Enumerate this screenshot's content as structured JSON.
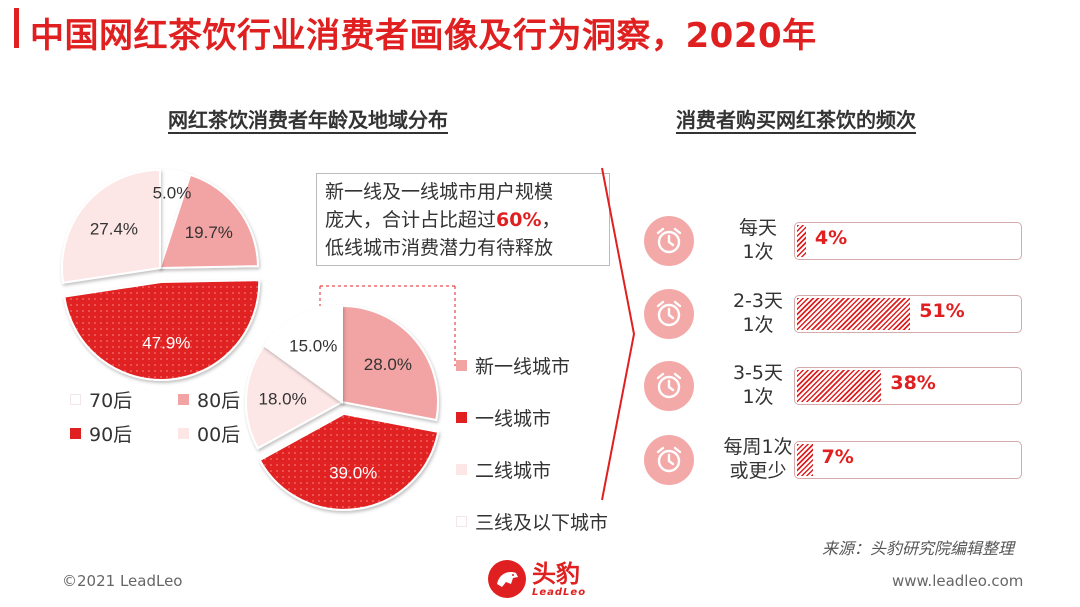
{
  "page": {
    "title": "中国网红茶饮行业消费者画像及行为洞察，2020年",
    "source": "来源：头豹研究院编辑整理",
    "copyright": "©2021 LeadLeo",
    "website": "www.leadleo.com",
    "logo_cn": "头豹",
    "logo_en": "LeadLeo"
  },
  "colors": {
    "accent": "#e02020",
    "pink": "#f2a3a3",
    "light": "#fce6e6",
    "white": "#ffffff"
  },
  "left_section": {
    "title": "网红茶饮消费者年龄及地域分布"
  },
  "right_section": {
    "title": "消费者购买网红茶饮的频次"
  },
  "callout": {
    "line1": "新一线及一线城市用户规模",
    "line2a": "庞大，合计占比超过",
    "highlight": "60%",
    "line2b": "，",
    "line3": "低线城市消费潜力有待释放"
  },
  "age_legend": [
    "70后",
    "80后",
    "90后",
    "00后"
  ],
  "region_legend": [
    "新一线城市",
    "一线城市",
    "二线城市",
    "三线及以下城市"
  ],
  "chart_data": [
    {
      "type": "pie",
      "title": "网红茶饮消费者年龄分布",
      "categories": [
        "70后",
        "80后",
        "90后",
        "00后"
      ],
      "values": [
        5.0,
        19.7,
        47.9,
        27.4
      ],
      "labels": [
        "5.0%",
        "19.7%",
        "47.9%",
        "27.4%"
      ],
      "colors": [
        "#ffffff",
        "#f2a3a3",
        "#e02020",
        "#fce6e6"
      ],
      "exploded": "90后"
    },
    {
      "type": "pie",
      "title": "网红茶饮消费者地域分布",
      "categories": [
        "新一线城市",
        "一线城市",
        "二线城市",
        "三线及以下城市"
      ],
      "values": [
        28.0,
        39.0,
        18.0,
        15.0
      ],
      "labels": [
        "28.0%",
        "39.0%",
        "18.0%",
        "15.0%"
      ],
      "colors": [
        "#f2a3a3",
        "#e02020",
        "#fce6e6",
        "#ffffff"
      ],
      "exploded": "一线城市"
    },
    {
      "type": "bar",
      "orientation": "horizontal",
      "title": "消费者购买网红茶饮的频次",
      "categories": [
        "每天1次",
        "2-3天1次",
        "3-5天1次",
        "每周1次或更少"
      ],
      "category_lines": [
        [
          "每天",
          "1次"
        ],
        [
          "2-3天",
          "1次"
        ],
        [
          "3-5天",
          "1次"
        ],
        [
          "每周1次",
          "或更少"
        ]
      ],
      "values": [
        4,
        51,
        38,
        7
      ],
      "labels": [
        "4%",
        "51%",
        "38%",
        "7%"
      ],
      "unit": "%",
      "xlim": [
        0,
        100
      ]
    }
  ]
}
